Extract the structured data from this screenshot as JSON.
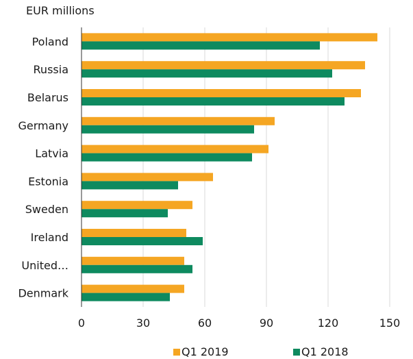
{
  "chart_data": {
    "type": "bar",
    "orientation": "horizontal",
    "unit_label": "EUR millions",
    "categories": [
      "Poland",
      "Russia",
      "Belarus",
      "Germany",
      "Latvia",
      "Estonia",
      "Sweden",
      "Ireland",
      "United…",
      "Denmark"
    ],
    "series": [
      {
        "name": "Q1 2019",
        "color": "#F5A623",
        "values": [
          144,
          138,
          136,
          94,
          91,
          64,
          54,
          51,
          50,
          50
        ]
      },
      {
        "name": "Q1 2018",
        "color": "#0E8A5F",
        "values": [
          116,
          122,
          128,
          84,
          83,
          47,
          42,
          59,
          54,
          43
        ]
      }
    ],
    "x_ticks": [
      0,
      30,
      60,
      90,
      120,
      150
    ],
    "xlim": [
      0,
      150
    ],
    "grid": "vertical",
    "legend_position": "bottom"
  }
}
